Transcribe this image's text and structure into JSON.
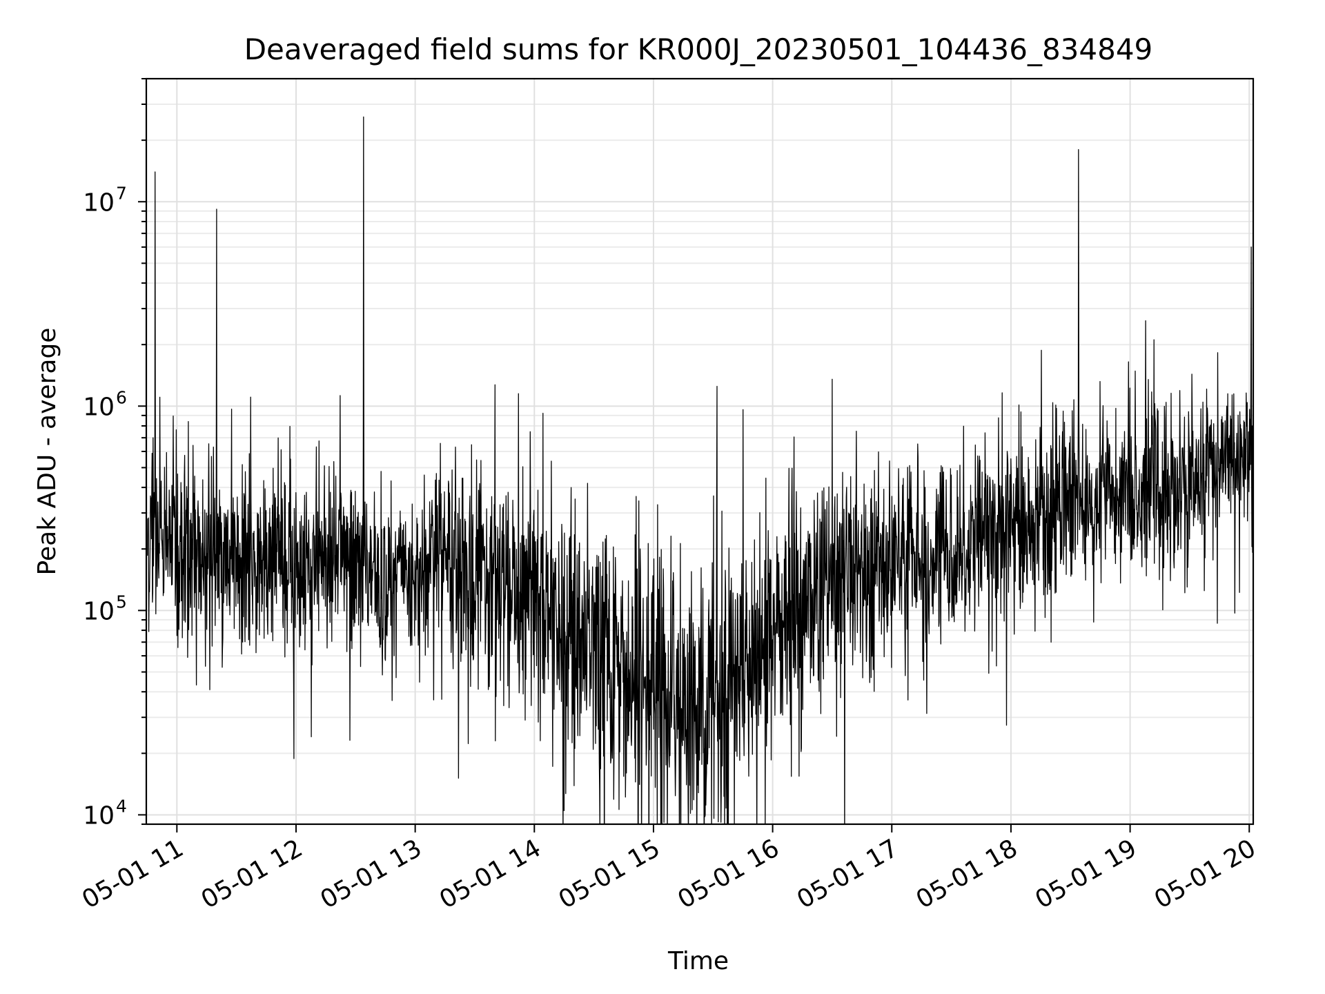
{
  "chart_data": {
    "type": "line",
    "title": "Deaveraged field sums for KR000J_20230501_104436_834849",
    "xlabel": "Time",
    "ylabel": "Peak ADU - average",
    "yscale": "log",
    "xlim": [
      "05-01 10:44:36",
      "05-01 20:02"
    ],
    "ylim": [
      9000,
      40000000
    ],
    "grid": true,
    "line_color": "#000000",
    "x_ticks": [
      {
        "t": "05-01 11:00",
        "label": "05-01 11"
      },
      {
        "t": "05-01 12:00",
        "label": "05-01 12"
      },
      {
        "t": "05-01 13:00",
        "label": "05-01 13"
      },
      {
        "t": "05-01 14:00",
        "label": "05-01 14"
      },
      {
        "t": "05-01 15:00",
        "label": "05-01 15"
      },
      {
        "t": "05-01 16:00",
        "label": "05-01 16"
      },
      {
        "t": "05-01 17:00",
        "label": "05-01 17"
      },
      {
        "t": "05-01 18:00",
        "label": "05-01 18"
      },
      {
        "t": "05-01 19:00",
        "label": "05-01 19"
      },
      {
        "t": "05-01 20:00",
        "label": "05-01 20"
      }
    ],
    "y_ticks": [
      {
        "value": 10000,
        "base": "10",
        "exp": "4"
      },
      {
        "value": 100000,
        "base": "10",
        "exp": "5"
      },
      {
        "value": 1000000,
        "base": "10",
        "exp": "6"
      },
      {
        "value": 10000000,
        "base": "10",
        "exp": "7"
      }
    ],
    "series": [
      {
        "baseline": [
          [
            "05-01 10:45",
            230000,
            1.6
          ],
          [
            "05-01 11:00",
            210000,
            1.7
          ],
          [
            "05-01 11:30",
            180000,
            1.6
          ],
          [
            "05-01 12:00",
            160000,
            1.6
          ],
          [
            "05-01 12:30",
            160000,
            1.6
          ],
          [
            "05-01 13:00",
            140000,
            1.5
          ],
          [
            "05-01 13:15",
            220000,
            1.6
          ],
          [
            "05-01 13:30",
            150000,
            1.8
          ],
          [
            "05-01 14:00",
            110000,
            2.0
          ],
          [
            "05-01 14:20",
            70000,
            2.3
          ],
          [
            "05-01 14:40",
            45000,
            2.4
          ],
          [
            "05-01 15:00",
            40000,
            2.5
          ],
          [
            "05-01 15:20",
            38000,
            2.5
          ],
          [
            "05-01 15:40",
            45000,
            2.4
          ],
          [
            "05-01 16:00",
            80000,
            2.2
          ],
          [
            "05-01 16:30",
            130000,
            1.9
          ],
          [
            "05-01 17:00",
            170000,
            1.7
          ],
          [
            "05-01 17:30",
            200000,
            1.6
          ],
          [
            "05-01 18:00",
            260000,
            1.6
          ],
          [
            "05-01 18:30",
            330000,
            1.6
          ],
          [
            "05-01 19:00",
            400000,
            1.5
          ],
          [
            "05-01 19:30",
            380000,
            1.5
          ],
          [
            "05-01 19:45",
            550000,
            1.25
          ],
          [
            "05-01 20:02",
            560000,
            1.2
          ]
        ],
        "spikes": [
          [
            "05-01 10:48",
            700000
          ],
          [
            "05-01 10:49",
            14000000
          ],
          [
            "05-01 11:20",
            9200000
          ],
          [
            "05-01 12:34",
            26000000
          ],
          [
            "05-01 13:52",
            1150000
          ],
          [
            "05-01 15:32",
            1250000
          ],
          [
            "05-01 18:34",
            18000000
          ],
          [
            "05-01 20:01",
            6000000
          ]
        ]
      }
    ]
  }
}
